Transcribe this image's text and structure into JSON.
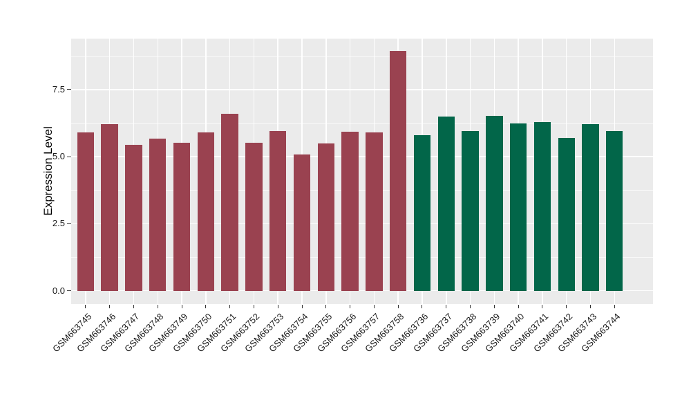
{
  "chart_data": {
    "type": "bar",
    "title": "",
    "xlabel": "",
    "ylabel": "Expression Level",
    "ylim": [
      -0.5,
      9.4
    ],
    "grid": true,
    "legend": false,
    "panel_bg": "#EBEBEB",
    "grid_color": "#FFFFFF",
    "group_colors": {
      "left-group": "#9A4250",
      "right-group": "#026649"
    },
    "y_axis": {
      "ticks": [
        "0.0",
        "2.5",
        "5.0",
        "7.5"
      ],
      "tick_values": [
        0,
        2.5,
        5.0,
        7.5
      ],
      "minor_tick_values": [
        1.25,
        3.75,
        6.25,
        8.75
      ]
    },
    "categories": [
      "GSM663745",
      "GSM663746",
      "GSM663747",
      "GSM663748",
      "GSM663749",
      "GSM663750",
      "GSM663751",
      "GSM663752",
      "GSM663753",
      "GSM663754",
      "GSM663755",
      "GSM663756",
      "GSM663757",
      "GSM663758",
      "GSM663736",
      "GSM663737",
      "GSM663738",
      "GSM663739",
      "GSM663740",
      "GSM663741",
      "GSM663742",
      "GSM663743",
      "GSM663744"
    ],
    "values": [
      5.9,
      6.2,
      5.45,
      5.68,
      5.53,
      5.91,
      6.6,
      5.51,
      5.96,
      5.08,
      5.48,
      5.92,
      5.9,
      8.93,
      5.81,
      6.49,
      5.96,
      6.51,
      6.25,
      6.3,
      5.71,
      6.21,
      5.96
    ],
    "colors": [
      "#9A4250",
      "#9A4250",
      "#9A4250",
      "#9A4250",
      "#9A4250",
      "#9A4250",
      "#9A4250",
      "#9A4250",
      "#9A4250",
      "#9A4250",
      "#9A4250",
      "#9A4250",
      "#9A4250",
      "#9A4250",
      "#026649",
      "#026649",
      "#026649",
      "#026649",
      "#026649",
      "#026649",
      "#026649",
      "#026649",
      "#026649"
    ]
  }
}
